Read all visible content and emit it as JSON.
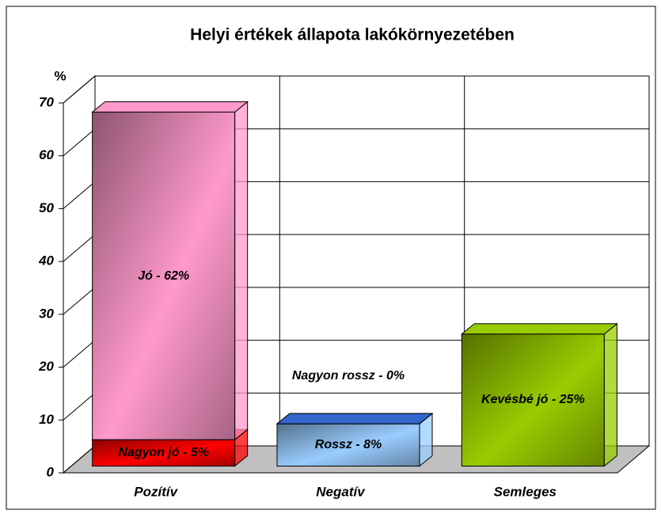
{
  "chart_data": {
    "type": "bar3d_stacked",
    "title": "Helyi értékek állapota lakókörnyezetében",
    "y_label": "%",
    "categories": [
      "Pozítív",
      "Negatív",
      "Semleges"
    ],
    "series": [
      {
        "color": "#ff0000",
        "values": [
          5,
          null,
          null
        ],
        "value_labels": [
          "Nagyon jó - 5%",
          null,
          null
        ]
      },
      {
        "color": "#ff99cc",
        "values": [
          62,
          null,
          null
        ],
        "value_labels": [
          "Jó - 62%",
          null,
          null
        ]
      },
      {
        "color": "#99ccff",
        "values": [
          null,
          8,
          null
        ],
        "value_labels": [
          null,
          "Rossz - 8%",
          null
        ]
      },
      {
        "color": "#3366cc",
        "values": [
          null,
          0,
          null
        ],
        "value_labels": [
          null,
          "Nagyon rossz - 0%",
          null
        ]
      },
      {
        "color": "#99cc00",
        "values": [
          null,
          null,
          25
        ],
        "value_labels": [
          null,
          null,
          "Kevésbé jó - 25%"
        ]
      }
    ],
    "ylim": [
      0,
      70
    ],
    "yticks": [
      0,
      10,
      20,
      30,
      40,
      50,
      60,
      70
    ],
    "grid": true
  }
}
